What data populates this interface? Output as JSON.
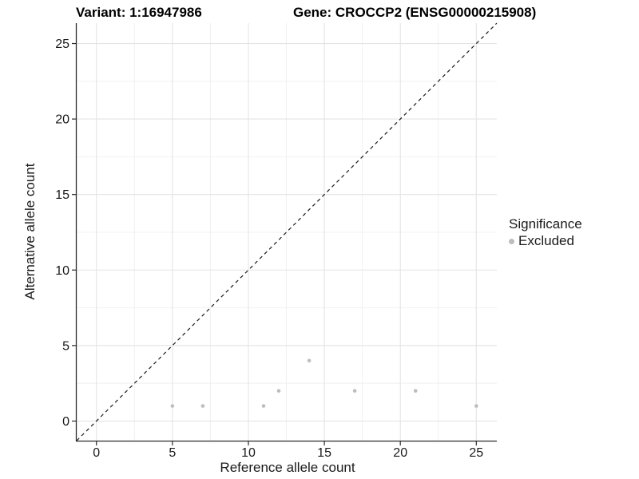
{
  "figure": {
    "title_left": "Variant: 1:16947986",
    "title_right": "Gene: CROCCP2 (ENSG00000215908)"
  },
  "chart_data": {
    "type": "scatter",
    "title": "Variant: 1:16947986   Gene: CROCCP2 (ENSG00000215908)",
    "xlabel": "Reference allele count",
    "ylabel": "Alternative allele count",
    "xlim": [
      -1.3,
      26.35
    ],
    "ylim": [
      -1.3,
      26.35
    ],
    "x_ticks": [
      0,
      5,
      10,
      15,
      20,
      25
    ],
    "y_ticks": [
      0,
      5,
      10,
      15,
      20,
      25
    ],
    "minor_gridlines": [
      2.5,
      7.5,
      12.5,
      17.5,
      22.5
    ],
    "grid": true,
    "series": [
      {
        "name": "Excluded",
        "color": "#bdbdbd",
        "marker": "circle",
        "points": [
          [
            5,
            1
          ],
          [
            7,
            1
          ],
          [
            11,
            1
          ],
          [
            12,
            2
          ],
          [
            14,
            4
          ],
          [
            17,
            2
          ],
          [
            21,
            2
          ],
          [
            25,
            1
          ]
        ]
      }
    ],
    "reference_line": {
      "type": "identity",
      "slope": 1,
      "intercept": 0,
      "style": "dashed",
      "color": "#1a1a1a"
    },
    "legend": {
      "title": "Significance",
      "position": "right",
      "entries": [
        {
          "label": "Excluded",
          "color": "#bdbdbd",
          "marker": "circle"
        }
      ]
    }
  },
  "colors": {
    "background": "#ffffff",
    "axis_line": "#2b2b2b",
    "tick_text": "#1a1a1a",
    "grid_major": "#e4e4e4",
    "grid_minor": "#efefef",
    "point": "#bdbdbd"
  }
}
